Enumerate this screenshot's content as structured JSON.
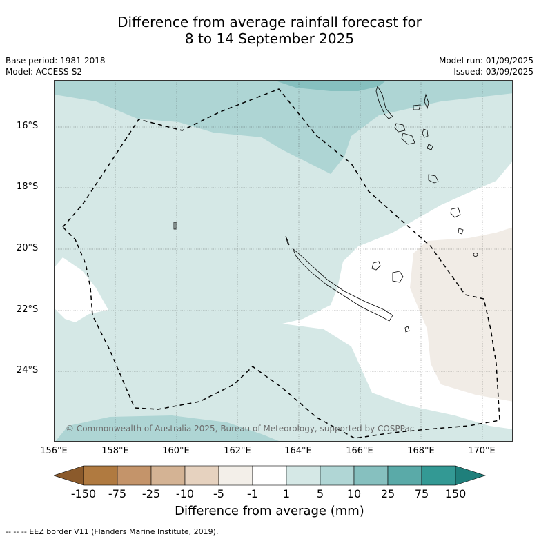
{
  "title_line1": "Difference from average rainfall forecast for",
  "title_line2": "8 to 14 September 2025",
  "left_meta": {
    "base_period": "Base period: 1981-2018",
    "model": "Model: ACCESS-S2"
  },
  "right_meta": {
    "model_run": "Model run: 01/09/2025",
    "issued": "Issued: 03/09/2025"
  },
  "lat_labels": [
    "16°S",
    "18°S",
    "20°S",
    "22°S",
    "24°S"
  ],
  "lon_labels": [
    "156°E",
    "158°E",
    "160°E",
    "162°E",
    "164°E",
    "166°E",
    "168°E",
    "170°E"
  ],
  "copyright": "© Commonwealth of Australia 2025, Bureau of Meteorology, supported by COSPPac",
  "colorbar": {
    "tick_labels": [
      "-150",
      "-75",
      "-25",
      "-10",
      "-5",
      "-1",
      "1",
      "5",
      "10",
      "25",
      "75",
      "150"
    ],
    "colors": [
      "#8b5a2b",
      "#b07a40",
      "#c4946a",
      "#d4b394",
      "#e6d2bf",
      "#f3efe9",
      "#ffffff",
      "#d5e8e6",
      "#b0d6d5",
      "#86c0bf",
      "#5aaaa8",
      "#339994",
      "#1f7f7b"
    ],
    "title": "Difference from average (mm)"
  },
  "legend_footer": "--  --  -- EEZ border V11 (Flanders Marine Institute, 2019).",
  "map_colors": {
    "light": "#d5e8e6",
    "mid": "#aed5d4",
    "dark": "#86c0bf",
    "neutral": "#ffffff",
    "dry": "#f1ece6"
  }
}
